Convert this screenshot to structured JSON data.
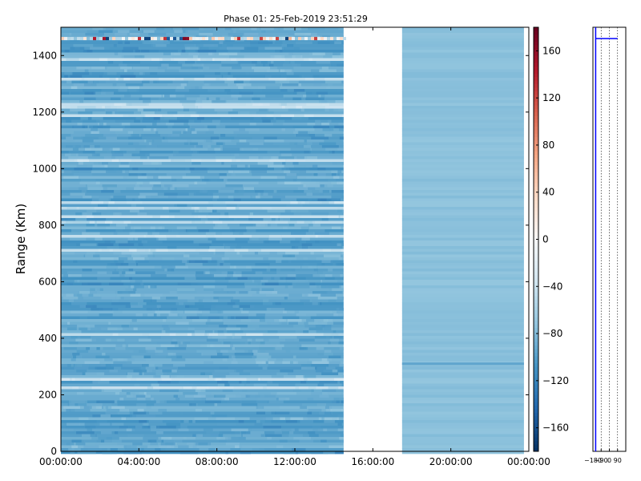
{
  "chart_data": [
    {
      "type": "heatmap",
      "title": "Phase 01: 25-Feb-2019 23:51:29",
      "xlabel": "",
      "ylabel": "Range (Km)",
      "xlim": [
        "00:00:00",
        "24:00:00"
      ],
      "ylim": [
        0,
        1500
      ],
      "x_ticks": [
        "00:00:00",
        "04:00:00",
        "08:00:00",
        "12:00:00",
        "16:00:00",
        "20:00:00",
        "00:00:00"
      ],
      "y_ticks": [
        0,
        200,
        400,
        600,
        800,
        1000,
        1200,
        1400
      ],
      "data_segments": [
        {
          "x_start": "00:00:00",
          "x_end": "14:30:00",
          "typical_value": -95,
          "description_range": [
            -120,
            -40
          ]
        },
        {
          "x_start": "17:30:00",
          "x_end": "23:45:00",
          "typical_value": -75,
          "description_range": [
            -85,
            -65
          ]
        }
      ],
      "gap": {
        "x_start": "14:30:00",
        "x_end": "17:30:00"
      },
      "anomaly_row_km": 1460,
      "colorbar": {
        "colormap": "RdBu_r",
        "vmin": -180,
        "vmax": 180,
        "ticks": [
          -160,
          -120,
          -80,
          -40,
          0,
          40,
          80,
          120,
          160
        ]
      },
      "colors": {
        "low": "#053061",
        "mid": "#f7f7f7",
        "high": "#67001f"
      }
    },
    {
      "type": "line",
      "title": "",
      "xlabel": "",
      "ylabel": "",
      "xlim": [
        -180,
        180
      ],
      "ylim": [
        0,
        1500
      ],
      "x_ticks": [
        -180,
        -90,
        0,
        90
      ],
      "series": [
        {
          "x": [
            -150,
            -150
          ],
          "y": [
            0,
            1500
          ]
        },
        {
          "x": [
            -150,
            90
          ],
          "y": [
            1460,
            1460
          ]
        }
      ],
      "grid": true,
      "line_color": "#0000ff"
    }
  ]
}
